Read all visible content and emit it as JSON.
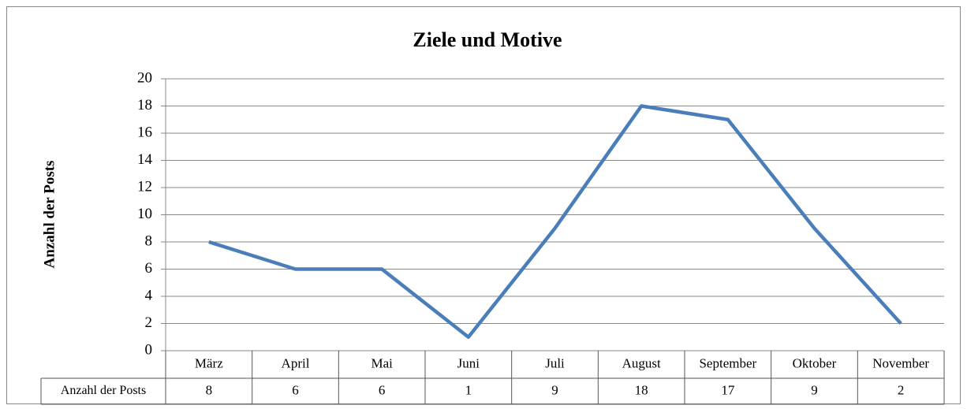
{
  "chart_data": {
    "type": "line",
    "title": "Ziele und Motive",
    "ylabel": "Anzahl der Posts",
    "categories": [
      "März",
      "April",
      "Mai",
      "Juni",
      "Juli",
      "August",
      "September",
      "Oktober",
      "November"
    ],
    "series": [
      {
        "name": "Anzahl der Posts",
        "color": "#4a7ebb",
        "values": [
          8,
          6,
          6,
          1,
          9,
          18,
          17,
          9,
          2
        ]
      }
    ],
    "ylim": [
      0,
      20
    ],
    "yticks": [
      0,
      2,
      4,
      6,
      8,
      10,
      12,
      14,
      16,
      18,
      20
    ],
    "grid": true,
    "data_table": true
  }
}
